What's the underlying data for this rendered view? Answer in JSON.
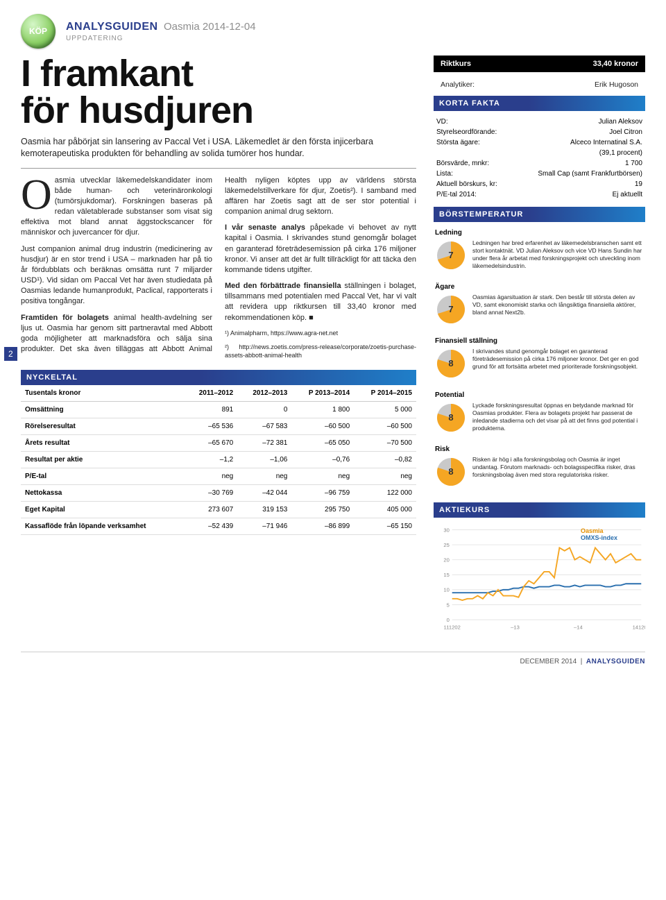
{
  "header": {
    "badge": "KÖP",
    "series": "ANALYSGUIDEN",
    "subject": "Oasmia 2014-12-04",
    "edition": "UPPDATERING"
  },
  "pageMarker": "2",
  "article": {
    "title_l1": "I framkant",
    "title_l2": "för husdjuren",
    "lede": "Oasmia har påbörjat sin lansering av Paccal Vet i USA. Läkemedlet är den första injicerbara kemoterapeutiska produkten för behandling av solida tumörer hos hundar.",
    "dropcap": "O",
    "p1": "asmia utvecklar läkemedelskandidater inom både human- och veterinäronkologi (tumörsjukdomar). Forskningen baseras på redan väletablerade substanser som visat sig effektiva mot bland annat äggstockscancer för människor och juvercancer för djur.",
    "p2": "Just companion animal drug industrin (medicinering av husdjur) är en stor trend i USA – marknaden har på tio år fördubblats och beräknas omsätta runt 7 miljarder USD¹). Vid sidan om Paccal Vet har även studiedata på Oasmias ledande humanprodukt, Paclical, rapporterats i positiva tongångar.",
    "p3_lead": "Framtiden för bolagets",
    "p3_rest": " animal health-avdelning ser ljus ut. Oasmia har genom sitt partneravtal med Abbott goda möjligheter att marknadsföra och sälja sina produkter. Det ska även tilläggas att Abbott Animal Health nyligen köptes upp av världens största läkemedelstillverkare för djur, Zoetis²). I samband med affären har Zoetis sagt att de ser stor potential i companion animal drug sektorn.",
    "p4_lead": "I vår senaste analys",
    "p4_rest": " påpekade vi behovet av nytt kapital i Oasmia. I skrivandes stund genomgår bolaget en garanterad företrädesemission på cirka 176 miljoner kronor. Vi anser att det är fullt tillräckligt för att täcka den kommande tidens utgifter.",
    "p5_lead": "Med den förbättrade finansiella",
    "p5_rest": " ställningen i bolaget, tillsammans med potentialen med Paccal Vet, har vi valt att revidera upp riktkursen till 33,40 kronor med rekommendationen köp. ■",
    "ref1": "¹) Animalpharm, https://www.agra-net.net",
    "ref2": "²) http://news.zoetis.com/press-release/corporate/zoetis-purchase-assets-abbott-animal-health"
  },
  "nyckeltal": {
    "title": "NYCKELTAL",
    "headers": [
      "Tusentals kronor",
      "2011–2012",
      "2012–2013",
      "P 2013–2014",
      "P 2014–2015"
    ],
    "rows": [
      [
        "Omsättning",
        "891",
        "0",
        "1 800",
        "5 000"
      ],
      [
        "Rörelseresultat",
        "–65 536",
        "–67 583",
        "–60 500",
        "–60 500"
      ],
      [
        "Årets resultat",
        "–65 670",
        "–72 381",
        "–65 050",
        "–70 500"
      ],
      [
        "Resultat per aktie",
        "–1,2",
        "–1,06",
        "–0,76",
        "–0,82"
      ],
      [
        "P/E-tal",
        "neg",
        "neg",
        "neg",
        "neg"
      ],
      [
        "Nettokassa",
        "–30 769",
        "–42 044",
        "–96 759",
        "122 000"
      ],
      [
        "Eget Kapital",
        "273 607",
        "319 153",
        "295 750",
        "405 000"
      ],
      [
        "Kassaflöde från löpande verksamhet",
        "–52 439",
        "–71 946",
        "–86 899",
        "–65 150"
      ]
    ]
  },
  "riktkurs": {
    "label": "Riktkurs",
    "value": "33,40 kronor"
  },
  "analyst": {
    "label": "Analytiker:",
    "name": "Erik Hugoson"
  },
  "korta_fakta": {
    "title": "KORTA FAKTA",
    "rows": [
      [
        "VD:",
        "Julian Aleksov"
      ],
      [
        "Styrelseordförande:",
        "Joel Citron"
      ],
      [
        "Största ägare:",
        "Alceco Internatinal S.A."
      ],
      [
        "",
        "(39,1 procent)"
      ],
      [
        "Börsvärde, mnkr:",
        "1 700"
      ],
      [
        "Lista:",
        "Small Cap (samt Frankfurtbörsen)"
      ],
      [
        "Aktuell börskurs, kr:",
        "19"
      ],
      [
        "P/E-tal 2014:",
        "Ej aktuellt"
      ]
    ]
  },
  "borstemp": {
    "title": "BÖRSTEMPERATUR",
    "pie_fill": "#f5a623",
    "pie_rest": "#c9c9c9",
    "items": [
      {
        "label": "Ledning",
        "score": 7,
        "desc": "Ledningen har bred erfarenhet av läkemedelsbranschen samt ett stort kontaktnät. VD Julian Aleksov och vice VD Hans Sundin har under flera år arbetat med forskningsprojekt och utveckling inom läkemedelsindustrin."
      },
      {
        "label": "Ägare",
        "score": 7,
        "desc": "Oasmias ägarsituation är stark. Den består till största delen av VD, samt ekonomiskt starka och långsiktiga finansiella aktörer, bland annat Next2b."
      },
      {
        "label": "Finansiell ställning",
        "score": 8,
        "desc": "I skrivandes stund genomgår bolaget en garanterad företrädesemission på cirka 176 miljoner kronor. Det ger en god grund för att fortsätta arbetet med prioriterade forskningsobjekt."
      },
      {
        "label": "Potential",
        "score": 8,
        "desc": "Lyckade forskningsresultat öppnas en betydande marknad för Oasmias produkter. Flera av bolagets projekt har passerat de inledande stadierna och det visar på att det finns god potential i produkterna."
      },
      {
        "label": "Risk",
        "score": 8,
        "desc": "Risken är hög i alla forskningsbolag och Oasmia är inget undantag. Förutom marknads- och bolagsspecifika risker, dras forskningsbolag även med stora regulatoriska risker."
      }
    ]
  },
  "aktiekurs": {
    "title": "AKTIEKURS",
    "series_a": "Oasmia",
    "series_b": "OMXS-index",
    "color_a": "#f5a623",
    "color_b": "#2a6fae",
    "grid_color": "#e4e4e4",
    "axis_color": "#888",
    "ylim": [
      0,
      30
    ],
    "ytick_step": 5,
    "xlabels": [
      "111202",
      "–13",
      "–14",
      "141202"
    ],
    "data_a": [
      7,
      7,
      6.5,
      7,
      7,
      8,
      7,
      9,
      8,
      10,
      8,
      8,
      8,
      7.5,
      11,
      13,
      12,
      14,
      16,
      16,
      14,
      24,
      23,
      24,
      20,
      21,
      20,
      19,
      24,
      22,
      20,
      22,
      19,
      20,
      21,
      22,
      20,
      20
    ],
    "data_b": [
      9,
      9,
      9,
      9,
      9,
      9,
      9,
      9,
      9.5,
      9.5,
      10,
      10,
      10.5,
      10.5,
      11,
      11,
      10.5,
      11,
      11,
      11,
      11.5,
      11.5,
      11,
      11,
      11.5,
      11,
      11.5,
      11.5,
      11.5,
      11.5,
      11,
      11,
      11.5,
      11.5,
      12,
      12,
      12,
      12
    ]
  },
  "footer": {
    "date": "DECEMBER 2014",
    "brand": "ANALYSGUIDEN"
  }
}
